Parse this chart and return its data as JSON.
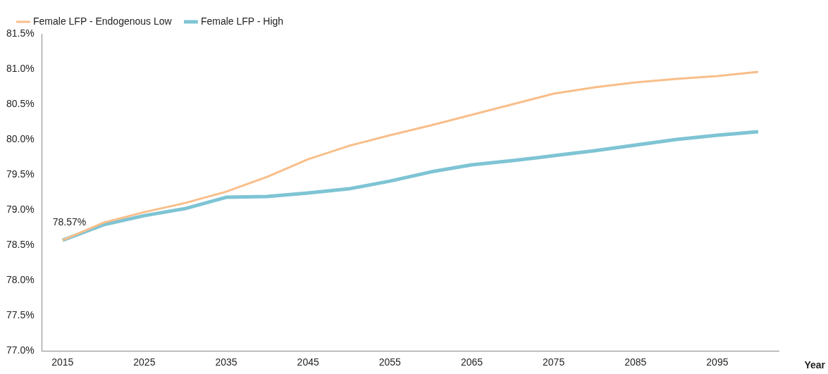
{
  "chart_data": {
    "type": "line",
    "xlabel": "Year",
    "categories": [
      "2015",
      null,
      "2025",
      null,
      "2035",
      null,
      "2045",
      null,
      "2055",
      null,
      "2065",
      null,
      "2075",
      null,
      "2085",
      null,
      "2095",
      null
    ],
    "series": [
      {
        "name": "Female LFP - Endogenous Low",
        "color": "#f9be8a",
        "values": [
          78.57,
          78.82,
          78.97,
          79.1,
          79.26,
          79.47,
          79.72,
          79.91,
          80.06,
          80.2,
          80.35,
          80.5,
          80.65,
          80.74,
          80.81,
          80.86,
          80.9,
          80.96
        ]
      },
      {
        "name": "Female LFP - High",
        "color": "#7ec4d4",
        "values": [
          78.57,
          78.79,
          78.92,
          79.02,
          79.18,
          79.19,
          79.24,
          79.3,
          79.41,
          79.54,
          79.64,
          79.7,
          79.77,
          79.84,
          79.92,
          80.0,
          80.06,
          80.11
        ]
      }
    ],
    "ylim": [
      77.0,
      81.5
    ],
    "yticks": [
      {
        "value": 77.0,
        "label": "77.0%"
      },
      {
        "value": 77.5,
        "label": "77.5%"
      },
      {
        "value": 78.0,
        "label": "78.0%"
      },
      {
        "value": 78.5,
        "label": "78.5%"
      },
      {
        "value": 79.0,
        "label": "79.0%"
      },
      {
        "value": 79.5,
        "label": "79.5%"
      },
      {
        "value": 80.0,
        "label": "80.0%"
      },
      {
        "value": 80.5,
        "label": "80.5%"
      },
      {
        "value": 81.0,
        "label": "81.0%"
      },
      {
        "value": 81.5,
        "label": "81.5%"
      }
    ],
    "annotations": [
      {
        "text": "78.57%",
        "x": "2015",
        "y": 78.57
      }
    ],
    "grid": false,
    "legend": "top",
    "marker": "none",
    "line_style": "solid"
  }
}
